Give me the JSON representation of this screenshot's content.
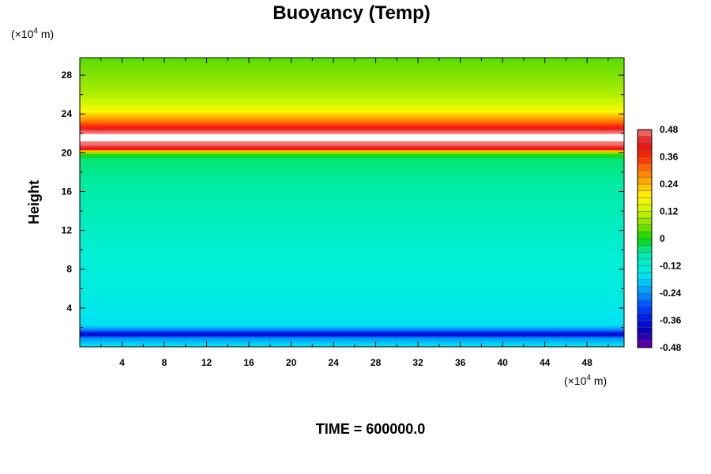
{
  "chart_data": {
    "type": "heatmap",
    "title": "Buoyancy (Temp)",
    "ylabel": "Height",
    "xlabel": "",
    "x_unit_prefix": "(×10",
    "x_unit_exp": "4",
    "x_unit_suffix": " m)",
    "y_unit_prefix": "(×10",
    "y_unit_exp": "4",
    "y_unit_suffix": " m)",
    "xlim": [
      0,
      51.5
    ],
    "ylim": [
      0,
      29.8
    ],
    "x_ticks": [
      4,
      8,
      12,
      16,
      20,
      24,
      28,
      32,
      36,
      40,
      44,
      48
    ],
    "y_ticks": [
      4,
      8,
      12,
      16,
      20,
      24,
      28
    ],
    "x_tick_labels": [
      "4",
      "8",
      "12",
      "16",
      "20",
      "24",
      "28",
      "32",
      "36",
      "40",
      "44",
      "48"
    ],
    "y_tick_labels": [
      "4",
      "8",
      "12",
      "16",
      "20",
      "24",
      "28"
    ],
    "colorbar": {
      "min": -0.48,
      "max": 0.48,
      "tick_values": [
        -0.48,
        -0.36,
        -0.24,
        -0.12,
        0,
        0.12,
        0.24,
        0.36,
        0.48
      ],
      "tick_labels": [
        "-0.48",
        "-0.36",
        "-0.24",
        "-0.12",
        "0",
        "0.12",
        "0.24",
        "0.36",
        "0.48"
      ]
    },
    "vertical_profile": [
      {
        "height": 0.0,
        "value": -0.14
      },
      {
        "height": 1.0,
        "value": -0.25
      },
      {
        "height": 1.3,
        "value": -0.42
      },
      {
        "height": 1.6,
        "value": -0.3
      },
      {
        "height": 2.2,
        "value": -0.17
      },
      {
        "height": 5.0,
        "value": -0.14
      },
      {
        "height": 9.0,
        "value": -0.12
      },
      {
        "height": 12.0,
        "value": -0.1
      },
      {
        "height": 16.0,
        "value": -0.07
      },
      {
        "height": 19.5,
        "value": -0.04
      },
      {
        "height": 20.0,
        "value": 0.05
      },
      {
        "height": 20.4,
        "value": 0.4
      },
      {
        "height": 20.8,
        "value": 0.46
      },
      {
        "height": 21.2,
        "value": 0.5
      },
      {
        "height": 21.9,
        "value": 0.5
      },
      {
        "height": 22.3,
        "value": 0.46
      },
      {
        "height": 22.8,
        "value": 0.36
      },
      {
        "height": 23.5,
        "value": 0.27
      },
      {
        "height": 24.5,
        "value": 0.16
      },
      {
        "height": 26.0,
        "value": 0.1
      },
      {
        "height": 28.0,
        "value": 0.06
      },
      {
        "height": 29.8,
        "value": 0.04
      }
    ],
    "above_range_band": [
      21.2,
      22.0
    ]
  },
  "footer": {
    "time_label": "TIME = 600000.0"
  }
}
